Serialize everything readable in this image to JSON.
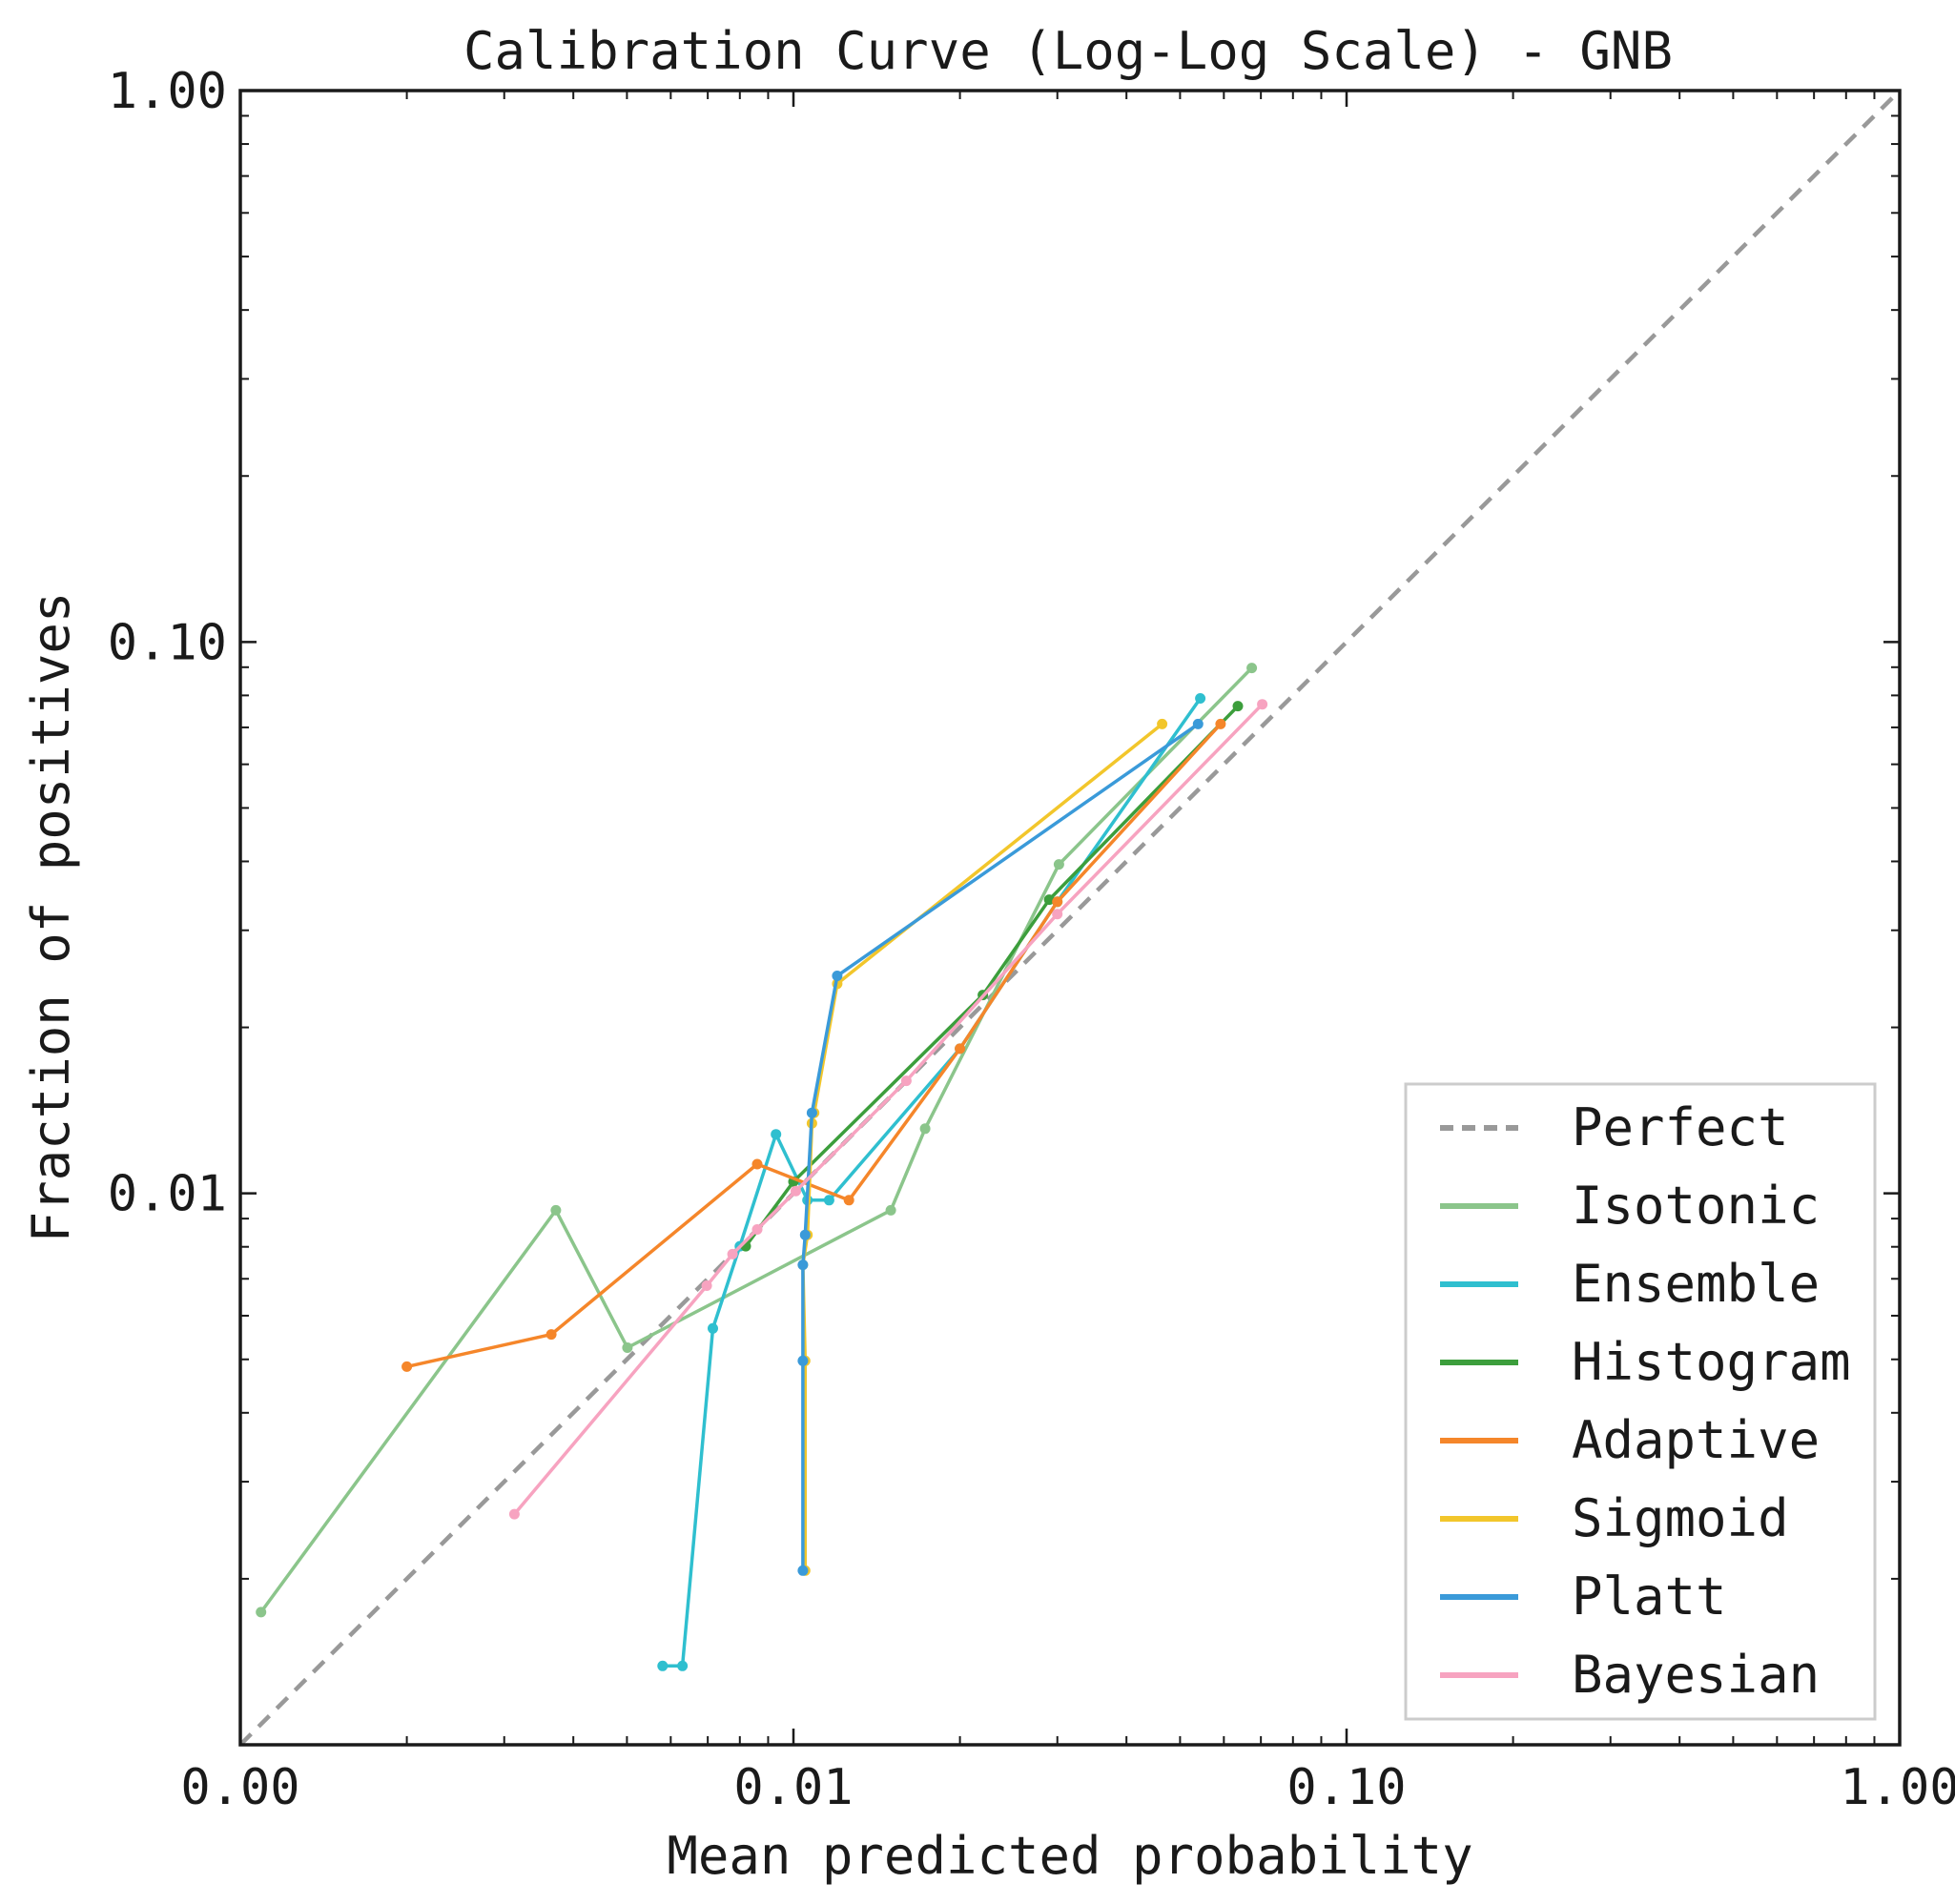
{
  "chart_data": {
    "type": "line",
    "title": "Calibration Curve (Log-Log Scale) - GNB",
    "xlabel": "Mean predicted probability",
    "ylabel": "Fraction of positives",
    "xscale": "log",
    "yscale": "log",
    "xlim": [
      0.001,
      1.0
    ],
    "ylim": [
      0.001,
      1.0
    ],
    "xticks": [
      0.001,
      0.01,
      0.1,
      1.0
    ],
    "xtick_labels": [
      "0.00",
      "0.01",
      "0.10",
      "1.00"
    ],
    "yticks": [
      0.01,
      0.1,
      1.0
    ],
    "ytick_labels": [
      "0.01",
      "0.10",
      "1.00"
    ],
    "grid": false,
    "legend_position": "bottom-right",
    "series": [
      {
        "name": "Perfect",
        "color": "#999999",
        "dashed": true,
        "alpha": 1.0,
        "markers": false,
        "x": [
          0.001,
          1.0
        ],
        "y": [
          0.001,
          1.0
        ]
      },
      {
        "name": "Isotonic",
        "color": "#8bc58b",
        "alpha": 1.0,
        "markers": true,
        "x": [
          0.00109,
          0.00372,
          0.00501,
          0.015,
          0.0173,
          0.0302,
          0.0674
        ],
        "y": [
          0.00174,
          0.00932,
          0.00525,
          0.00932,
          0.0131,
          0.0395,
          0.0897
        ]
      },
      {
        "name": "Ensemble",
        "color": "#2fbfcf",
        "alpha": 1.0,
        "markers": true,
        "x": [
          0.0058,
          0.0063,
          0.00715,
          0.008,
          0.0093,
          0.0106,
          0.0116,
          0.02,
          0.03,
          0.0544
        ],
        "y": [
          0.00139,
          0.00139,
          0.00569,
          0.00802,
          0.0128,
          0.00972,
          0.00972,
          0.0183,
          0.0338,
          0.079
        ]
      },
      {
        "name": "Histogram",
        "color": "#3c9e3c",
        "alpha": 1.0,
        "markers": true,
        "x": [
          0.0082,
          0.01,
          0.022,
          0.029,
          0.0636
        ],
        "y": [
          0.00802,
          0.0105,
          0.0229,
          0.0341,
          0.0765
        ]
      },
      {
        "name": "Adaptive",
        "color": "#f5862a",
        "alpha": 1.0,
        "markers": true,
        "x": [
          0.002,
          0.00365,
          0.0086,
          0.0126,
          0.02,
          0.03,
          0.0592
        ],
        "y": [
          0.00485,
          0.00555,
          0.0113,
          0.00972,
          0.0183,
          0.0338,
          0.071
        ]
      },
      {
        "name": "Sigmoid",
        "color": "#f2c62b",
        "alpha": 1.0,
        "markers": true,
        "x": [
          0.0105,
          0.0105,
          0.0104,
          0.0106,
          0.0108,
          0.0109,
          0.012,
          0.0464
        ],
        "y": [
          0.00207,
          0.00497,
          0.00742,
          0.00841,
          0.0134,
          0.014,
          0.024,
          0.071
        ]
      },
      {
        "name": "Platt",
        "color": "#3a9ad9",
        "alpha": 1.0,
        "markers": true,
        "x": [
          0.0104,
          0.0104,
          0.0104,
          0.0105,
          0.0108,
          0.012,
          0.0539
        ],
        "y": [
          0.00207,
          0.00497,
          0.00742,
          0.00841,
          0.014,
          0.0248,
          0.071
        ]
      },
      {
        "name": "Bayesian",
        "color": "#f7a3c0",
        "alpha": 1.0,
        "markers": true,
        "x": [
          0.00313,
          0.00697,
          0.00776,
          0.0086,
          0.0101,
          0.016,
          0.03,
          0.0704
        ],
        "y": [
          0.00262,
          0.0068,
          0.00776,
          0.0086,
          0.0101,
          0.016,
          0.0321,
          0.0771
        ]
      }
    ]
  }
}
